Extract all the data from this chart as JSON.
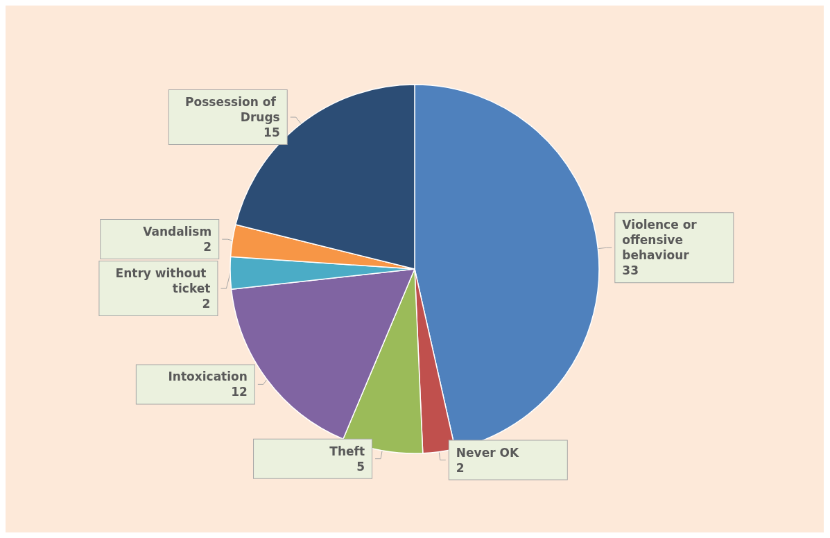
{
  "chart_data": {
    "type": "pie",
    "categories": [
      "Violence or offensive behaviour",
      "Never OK",
      "Theft",
      "Intoxication",
      "Entry without ticket",
      "Vandalism",
      "Possession of Drugs"
    ],
    "values": [
      33,
      2,
      5,
      12,
      2,
      2,
      15
    ],
    "colors": [
      "#4f81bd",
      "#c0504d",
      "#9bbb59",
      "#8064a2",
      "#4bacc6",
      "#f79646",
      "#2c4d75"
    ],
    "data_labels": true,
    "legend": false
  }
}
